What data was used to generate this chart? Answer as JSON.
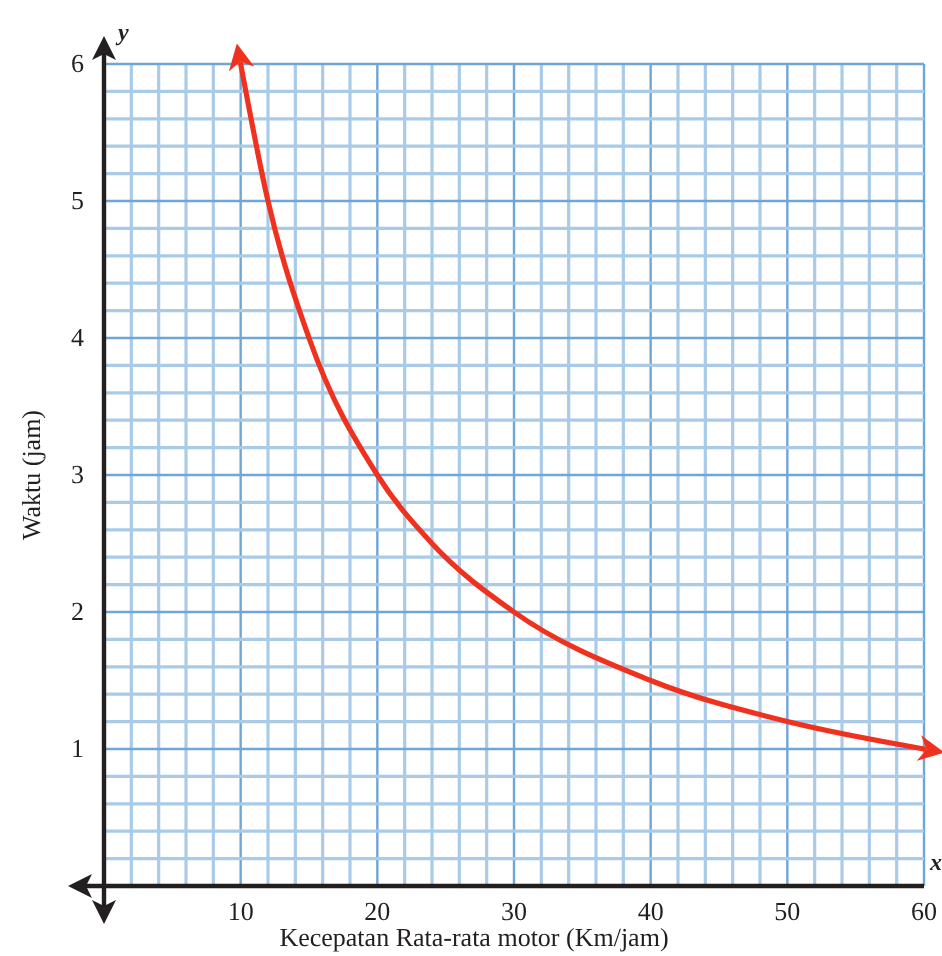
{
  "chart_data": {
    "type": "line",
    "xlabel": "Kecepatan Rata-rata motor (Km/jam)",
    "ylabel": "Waktu (jam)",
    "annotations": [
      "y",
      "x"
    ],
    "x": [
      10,
      12,
      15,
      20,
      24,
      30,
      40,
      50,
      60
    ],
    "series": [
      {
        "color": "#f0311e",
        "values": [
          6,
          5,
          4,
          3,
          2.5,
          2,
          1.5,
          1.2,
          1
        ]
      }
    ],
    "xlim": [
      0,
      60
    ],
    "ylim": [
      0,
      6
    ],
    "xticks": [
      {
        "value": 2,
        "label": null
      },
      {
        "value": 4,
        "label": null
      },
      {
        "value": 6,
        "label": null
      },
      {
        "value": 8,
        "label": null
      },
      10,
      {
        "value": 12,
        "label": null
      },
      {
        "value": 14,
        "label": null
      },
      {
        "value": 16,
        "label": null
      },
      {
        "value": 18,
        "label": null
      },
      20,
      {
        "value": 22,
        "label": null
      },
      {
        "value": 24,
        "label": null
      },
      {
        "value": 26,
        "label": null
      },
      {
        "value": 28,
        "label": null
      },
      30,
      {
        "value": 32,
        "label": null
      },
      {
        "value": 34,
        "label": null
      },
      {
        "value": 36,
        "label": null
      },
      {
        "value": 38,
        "label": null
      },
      40,
      {
        "value": 42,
        "label": null
      },
      {
        "value": 44,
        "label": null
      },
      {
        "value": 46,
        "label": null
      },
      {
        "value": 48,
        "label": null
      },
      50,
      {
        "value": 52,
        "label": null
      },
      {
        "value": 54,
        "label": null
      },
      {
        "value": 56,
        "label": null
      },
      {
        "value": 58,
        "label": null
      },
      60
    ],
    "yticks": [
      {
        "value": 0.2,
        "label": null
      },
      {
        "value": 0.4,
        "label": null
      },
      {
        "value": 0.6,
        "label": null
      },
      {
        "value": 0.8,
        "label": null
      },
      1,
      {
        "value": 1.2,
        "label": null
      },
      {
        "value": 1.4,
        "label": null
      },
      {
        "value": 1.6,
        "label": null
      },
      {
        "value": 1.8,
        "label": null
      },
      2,
      {
        "value": 2.2,
        "label": null
      },
      {
        "value": 2.4,
        "label": null
      },
      {
        "value": 2.6,
        "label": null
      },
      {
        "value": 2.8,
        "label": null
      },
      3,
      {
        "value": 3.2,
        "label": null
      },
      {
        "value": 3.4,
        "label": null
      },
      {
        "value": 3.6,
        "label": null
      },
      {
        "value": 3.8,
        "label": null
      },
      4,
      {
        "value": 4.2,
        "label": null
      },
      {
        "value": 4.4,
        "label": null
      },
      {
        "value": 4.6,
        "label": null
      },
      {
        "value": 4.8,
        "label": null
      },
      5,
      {
        "value": 5.2,
        "label": null
      },
      {
        "value": 5.4,
        "label": null
      },
      {
        "value": 5.6,
        "label": null
      },
      {
        "value": 5.8,
        "label": null
      },
      6
    ],
    "grid": true,
    "line_style": "solid",
    "marker": "none"
  }
}
